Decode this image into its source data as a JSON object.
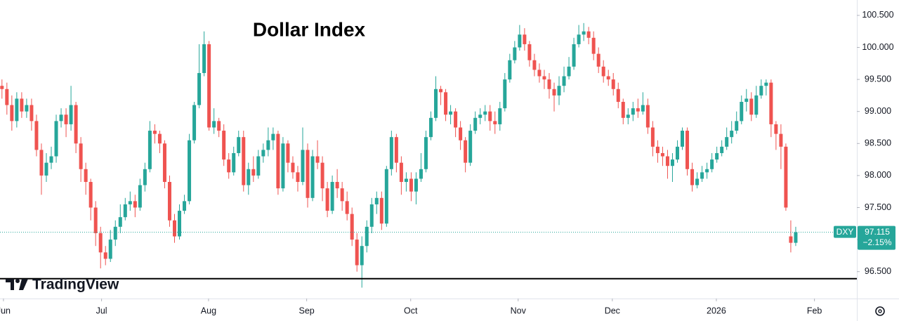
{
  "chart_data": {
    "type": "candlestick",
    "title": "Dollar Index",
    "brand": "TradingView",
    "up_color": "#26a69a",
    "down_color": "#ef5350",
    "ylim": [
      96.08,
      100.74
    ],
    "yticks": [
      {
        "value": 96.5,
        "label": "96.500"
      },
      {
        "value": 97,
        "label": "97.000"
      },
      {
        "value": 97.5,
        "label": "97.500"
      },
      {
        "value": 98,
        "label": "98.000"
      },
      {
        "value": 98.5,
        "label": "98.500"
      },
      {
        "value": 99,
        "label": "99.000"
      },
      {
        "value": 99.5,
        "label": "99.500"
      },
      {
        "value": 100,
        "label": "100.000"
      },
      {
        "value": 100.5,
        "label": "100.500"
      }
    ],
    "xlim": [
      -0.4,
      173.4
    ],
    "xticks": [
      {
        "value": 0.3,
        "label": "Jun"
      },
      {
        "value": 20.2,
        "label": "Jul"
      },
      {
        "value": 41.9,
        "label": "Aug"
      },
      {
        "value": 61.8,
        "label": "Sep"
      },
      {
        "value": 82.9,
        "label": "Oct"
      },
      {
        "value": 104.7,
        "label": "Nov"
      },
      {
        "value": 123.8,
        "label": "Dec"
      },
      {
        "value": 144.9,
        "label": "2026"
      },
      {
        "value": 164.8,
        "label": "Feb"
      }
    ],
    "hline": 96.39,
    "last": {
      "symbol": "DXY",
      "price": 97.115,
      "change": -2.15,
      "change_label": "−2.15%"
    },
    "open": [
      99.4,
      99.35,
      99.1,
      98.85,
      99.2,
      99.0,
      99.1,
      98.85,
      98.4,
      98.0,
      98.2,
      98.3,
      98.85,
      98.95,
      98.8,
      99.1,
      98.5,
      98.1,
      97.9,
      97.5,
      97.1,
      96.8,
      96.7,
      97.0,
      97.2,
      97.35,
      97.55,
      97.6,
      97.5,
      97.85,
      98.1,
      98.7,
      98.65,
      98.5,
      97.9,
      97.3,
      97.05,
      97.45,
      97.6,
      98.55,
      99.1,
      99.6,
      100.05,
      98.75,
      98.85,
      98.7,
      98.25,
      98.05,
      98.35,
      98.6,
      97.85,
      98.1,
      98.0,
      98.3,
      98.4,
      98.55,
      98.65,
      97.8,
      98.5,
      98.2,
      98.05,
      97.9,
      98.4,
      97.65,
      98.3,
      98.2,
      97.8,
      97.45,
      97.9,
      97.8,
      97.6,
      97.4,
      97.0,
      96.6,
      96.9,
      97.2,
      97.55,
      97.65,
      97.25,
      98.1,
      98.6,
      98.2,
      97.9,
      97.95,
      97.75,
      97.95,
      98.1,
      98.6,
      98.9,
      99.35,
      99.3,
      98.95,
      99.0,
      98.75,
      98.55,
      98.2,
      98.7,
      98.9,
      98.95,
      99.0,
      98.85,
      98.8,
      99.05,
      99.5,
      99.8,
      100.0,
      100.2,
      100.05,
      99.8,
      99.65,
      99.55,
      99.5,
      99.35,
      99.25,
      99.4,
      99.55,
      99.7,
      100.05,
      100.2,
      100.25,
      100.15,
      99.9,
      99.7,
      99.55,
      99.5,
      99.35,
      99.15,
      98.9,
      98.95,
      99.05,
      99.0,
      99.1,
      98.75,
      98.45,
      98.35,
      98.3,
      98.15,
      98.25,
      98.45,
      98.7,
      98.1,
      97.85,
      97.95,
      98.05,
      98.1,
      98.25,
      98.35,
      98.45,
      98.6,
      98.7,
      98.85,
      99.15,
      99.2,
      98.95,
      99.25,
      99.4,
      99.45,
      98.8,
      98.65,
      98.45,
      97.05,
      96.95
    ],
    "high": [
      99.5,
      99.45,
      99.25,
      99.3,
      99.3,
      99.2,
      99.2,
      98.95,
      98.5,
      98.35,
      98.45,
      98.95,
      99.05,
      99.05,
      99.4,
      99.15,
      98.6,
      98.2,
      97.95,
      97.6,
      97.2,
      96.9,
      97.15,
      97.3,
      97.55,
      97.65,
      97.75,
      97.7,
      97.95,
      98.2,
      98.85,
      98.8,
      98.7,
      98.55,
      98.0,
      97.4,
      97.55,
      97.7,
      98.65,
      99.15,
      100.05,
      100.25,
      100.1,
      99.05,
      98.9,
      98.8,
      98.35,
      98.45,
      98.7,
      98.7,
      98.2,
      98.3,
      98.4,
      98.5,
      98.75,
      98.75,
      98.7,
      98.6,
      98.55,
      98.3,
      98.15,
      98.75,
      98.5,
      98.4,
      98.55,
      98.3,
      97.9,
      98.0,
      98.1,
      97.9,
      97.75,
      97.5,
      97.1,
      97.05,
      97.3,
      97.65,
      97.75,
      97.75,
      98.15,
      98.7,
      98.65,
      98.3,
      98.05,
      98.05,
      98.05,
      98.35,
      98.7,
      99.0,
      99.55,
      99.4,
      99.35,
      99.1,
      99.05,
      98.85,
      98.6,
      98.8,
      99.0,
      99.05,
      99.1,
      99.1,
      99.0,
      99.15,
      99.6,
      99.9,
      100.1,
      100.35,
      100.3,
      100.1,
      99.9,
      99.75,
      99.65,
      99.6,
      99.45,
      99.55,
      99.7,
      99.85,
      100.15,
      100.35,
      100.38,
      100.32,
      100.25,
      100.0,
      99.8,
      99.65,
      99.6,
      99.45,
      99.2,
      99.05,
      99.15,
      99.2,
      99.3,
      99.2,
      98.85,
      98.55,
      98.45,
      98.4,
      98.35,
      98.55,
      98.75,
      98.75,
      98.2,
      98.05,
      98.15,
      98.2,
      98.35,
      98.45,
      98.55,
      98.75,
      98.85,
      99.0,
      99.25,
      99.35,
      99.3,
      99.4,
      99.5,
      99.5,
      99.5,
      98.85,
      98.8,
      98.5,
      97.3,
      97.2
    ],
    "low": [
      99.2,
      98.95,
      98.7,
      98.75,
      98.9,
      98.9,
      98.7,
      98.3,
      97.7,
      97.9,
      98.1,
      98.2,
      98.75,
      98.6,
      98.7,
      98.35,
      97.9,
      97.7,
      97.3,
      96.9,
      96.55,
      96.6,
      96.65,
      96.9,
      97.1,
      97.3,
      97.45,
      97.35,
      97.45,
      97.75,
      98.05,
      98.5,
      98.35,
      97.8,
      97.2,
      96.95,
      97.0,
      97.4,
      97.55,
      98.5,
      99.05,
      99.55,
      98.7,
      98.65,
      98.6,
      98.15,
      97.95,
      98.0,
      98.3,
      97.75,
      97.7,
      97.9,
      97.95,
      98.2,
      98.3,
      98.4,
      97.7,
      97.75,
      98.05,
      97.95,
      97.75,
      97.85,
      97.5,
      97.6,
      98.1,
      97.6,
      97.35,
      97.4,
      97.65,
      97.45,
      97.3,
      96.9,
      96.5,
      96.25,
      96.8,
      97.1,
      97.4,
      97.15,
      97.2,
      98.0,
      98.05,
      97.7,
      97.75,
      97.6,
      97.55,
      97.9,
      98.05,
      98.55,
      98.85,
      99.1,
      98.85,
      98.8,
      98.6,
      98.4,
      98.05,
      98.15,
      98.65,
      98.8,
      98.85,
      98.7,
      98.65,
      98.7,
      99.0,
      99.45,
      99.75,
      99.95,
      99.95,
      99.7,
      99.55,
      99.45,
      99.35,
      99.2,
      99.0,
      99.1,
      99.3,
      99.5,
      99.65,
      100.0,
      100.1,
      100.05,
      99.8,
      99.6,
      99.45,
      99.4,
      99.25,
      99.05,
      98.8,
      98.8,
      98.85,
      98.9,
      98.95,
      98.65,
      98.3,
      98.2,
      98.15,
      97.95,
      97.9,
      98.2,
      98.4,
      98.0,
      97.75,
      97.8,
      97.9,
      97.95,
      98.05,
      98.2,
      98.3,
      98.4,
      98.5,
      98.65,
      98.8,
      99.0,
      98.85,
      98.9,
      99.2,
      99.25,
      98.6,
      98.4,
      98.1,
      97.45,
      96.8,
      96.9
    ],
    "close": [
      99.35,
      99.1,
      98.85,
      99.2,
      99.0,
      99.1,
      98.85,
      98.4,
      98.0,
      98.2,
      98.3,
      98.85,
      98.95,
      98.8,
      99.1,
      98.5,
      98.1,
      97.9,
      97.5,
      97.1,
      96.8,
      96.7,
      97.0,
      97.2,
      97.35,
      97.55,
      97.6,
      97.5,
      97.85,
      98.1,
      98.7,
      98.65,
      98.5,
      97.9,
      97.3,
      97.05,
      97.45,
      97.6,
      98.55,
      99.1,
      99.6,
      100.05,
      98.75,
      98.85,
      98.7,
      98.25,
      98.05,
      98.35,
      98.6,
      97.85,
      98.1,
      98.0,
      98.3,
      98.4,
      98.55,
      98.65,
      97.8,
      98.5,
      98.2,
      98.05,
      97.9,
      98.4,
      97.65,
      98.3,
      98.2,
      97.8,
      97.45,
      97.9,
      97.8,
      97.6,
      97.4,
      97.0,
      96.6,
      96.9,
      97.2,
      97.55,
      97.65,
      97.25,
      98.1,
      98.6,
      98.2,
      97.9,
      97.95,
      97.75,
      97.95,
      98.1,
      98.6,
      98.9,
      99.35,
      99.3,
      98.95,
      99.0,
      98.75,
      98.55,
      98.2,
      98.7,
      98.9,
      98.95,
      99.0,
      98.85,
      98.8,
      99.05,
      99.5,
      99.8,
      100.0,
      100.2,
      100.05,
      99.8,
      99.65,
      99.55,
      99.5,
      99.35,
      99.25,
      99.4,
      99.55,
      99.7,
      100.05,
      100.2,
      100.25,
      100.15,
      99.9,
      99.7,
      99.55,
      99.5,
      99.35,
      99.15,
      98.9,
      98.95,
      99.05,
      99.0,
      99.1,
      98.75,
      98.45,
      98.35,
      98.3,
      98.15,
      98.25,
      98.45,
      98.7,
      98.1,
      97.85,
      97.95,
      98.05,
      98.1,
      98.25,
      98.35,
      98.45,
      98.6,
      98.7,
      98.85,
      99.15,
      99.2,
      98.95,
      99.25,
      99.4,
      99.45,
      98.8,
      98.65,
      98.45,
      97.5,
      96.95,
      97.115
    ]
  }
}
